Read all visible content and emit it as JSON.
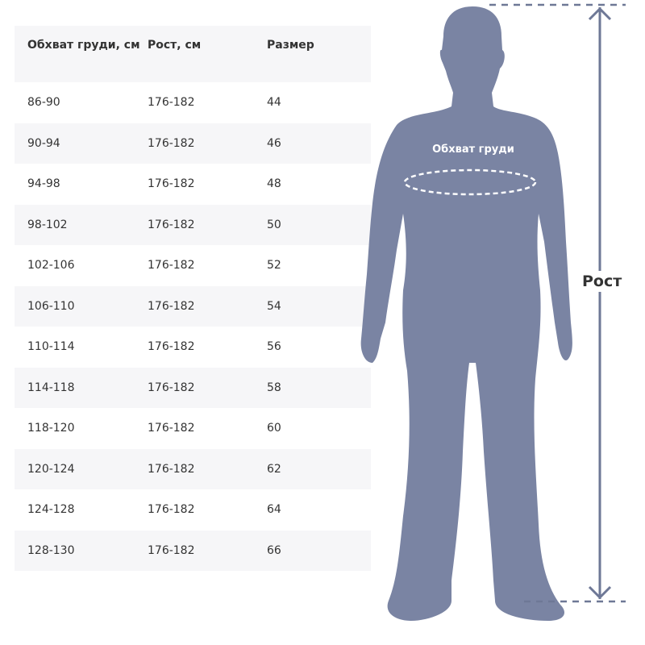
{
  "table": {
    "headers": [
      "Обхват груди, см",
      "Рост, см",
      "Размер"
    ],
    "rows": [
      [
        "86-90",
        "176-182",
        "44"
      ],
      [
        "90-94",
        "176-182",
        "46"
      ],
      [
        "94-98",
        "176-182",
        "48"
      ],
      [
        "98-102",
        "176-182",
        "50"
      ],
      [
        "102-106",
        "176-182",
        "52"
      ],
      [
        "106-110",
        "176-182",
        "54"
      ],
      [
        "110-114",
        "176-182",
        "56"
      ],
      [
        "114-118",
        "176-182",
        "58"
      ],
      [
        "118-120",
        "176-182",
        "60"
      ],
      [
        "120-124",
        "176-182",
        "62"
      ],
      [
        "124-128",
        "176-182",
        "64"
      ],
      [
        "128-130",
        "176-182",
        "66"
      ]
    ]
  },
  "figure": {
    "chest_label": "Обхват груди",
    "height_label": "Рост",
    "silhouette_color": "#7a84a3"
  }
}
